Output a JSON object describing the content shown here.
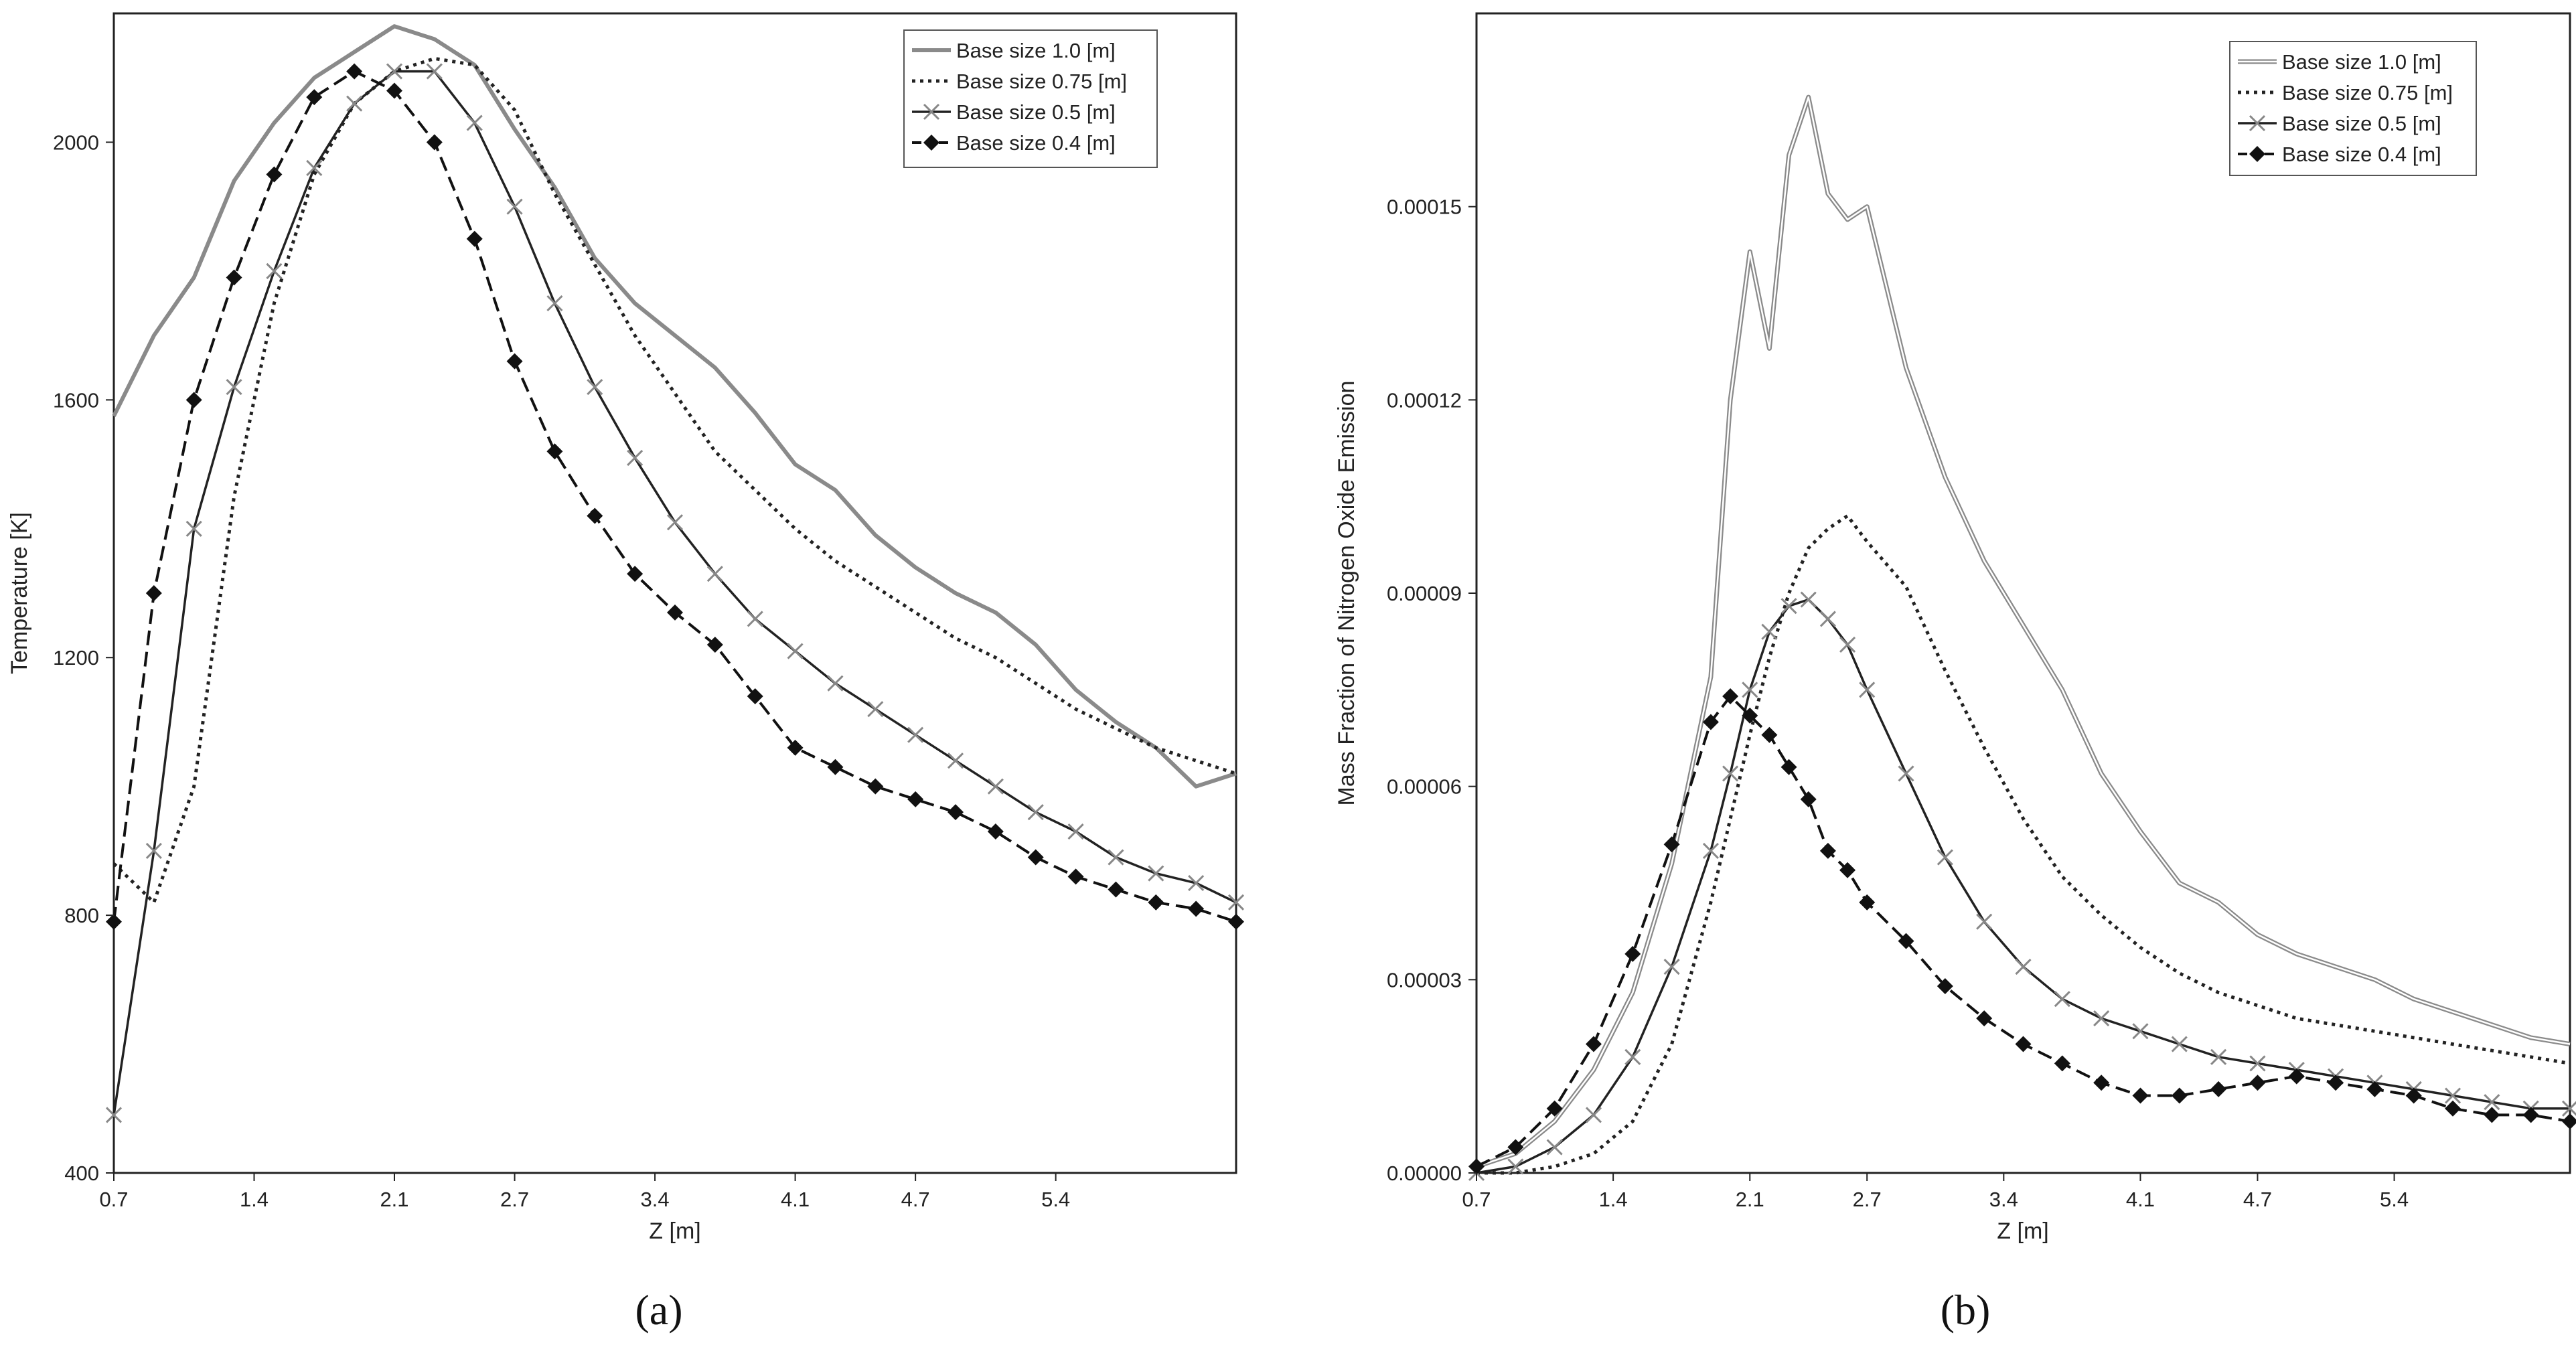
{
  "chart_data": [
    {
      "type": "line",
      "panel_label": "(a)",
      "xlabel": "Z [m]",
      "ylabel": "Temperature [K]",
      "x_ticks": [
        "0.7",
        "1.4",
        "2.1",
        "2.7",
        "3.4",
        "4.1",
        "4.7",
        "5.4"
      ],
      "y_ticks": [
        "400",
        "800",
        "1200",
        "1600",
        "2000"
      ],
      "xlim": [
        0.7,
        6.3
      ],
      "ylim": [
        400,
        2200
      ],
      "x": [
        0.7,
        0.9,
        1.1,
        1.3,
        1.5,
        1.7,
        1.9,
        2.1,
        2.3,
        2.5,
        2.7,
        2.9,
        3.1,
        3.3,
        3.5,
        3.7,
        3.9,
        4.1,
        4.3,
        4.5,
        4.7,
        4.9,
        5.1,
        5.3,
        5.5,
        5.7,
        5.9,
        6.1,
        6.3
      ],
      "series": [
        {
          "name": "Base size 1.0 [m]",
          "style": "gray-solid",
          "values": [
            1575,
            1700,
            1790,
            1940,
            2030,
            2100,
            2140,
            2180,
            2160,
            2120,
            2020,
            1930,
            1820,
            1750,
            1700,
            1650,
            1580,
            1500,
            1460,
            1390,
            1340,
            1300,
            1270,
            1220,
            1150,
            1100,
            1060,
            1000,
            1020
          ]
        },
        {
          "name": "Base size 0.75 [m]",
          "style": "dotted",
          "values": [
            880,
            820,
            1000,
            1450,
            1750,
            1950,
            2060,
            2110,
            2130,
            2120,
            2050,
            1920,
            1810,
            1700,
            1610,
            1520,
            1460,
            1400,
            1350,
            1310,
            1270,
            1230,
            1200,
            1160,
            1120,
            1090,
            1060,
            1040,
            1020
          ]
        },
        {
          "name": "Base size 0.5 [m]",
          "style": "solid-x",
          "values": [
            490,
            900,
            1400,
            1620,
            1800,
            1960,
            2060,
            2110,
            2110,
            2030,
            1900,
            1750,
            1620,
            1510,
            1410,
            1330,
            1260,
            1210,
            1160,
            1120,
            1080,
            1040,
            1000,
            960,
            930,
            890,
            865,
            850,
            820
          ]
        },
        {
          "name": "Base size 0.4 [m]",
          "style": "dash-diamond",
          "values": [
            790,
            1300,
            1600,
            1790,
            1950,
            2070,
            2110,
            2080,
            2000,
            1850,
            1660,
            1520,
            1420,
            1330,
            1270,
            1220,
            1140,
            1060,
            1030,
            1000,
            980,
            960,
            930,
            890,
            860,
            840,
            820,
            810,
            790
          ]
        }
      ]
    },
    {
      "type": "line",
      "panel_label": "(b)",
      "xlabel": "Z [m]",
      "ylabel": "Mass Fraction of Nitrogen Oxide Emission",
      "x_ticks": [
        "0.7",
        "1.4",
        "2.1",
        "2.7",
        "3.4",
        "4.1",
        "4.7",
        "5.4"
      ],
      "y_ticks": [
        "0.00000",
        "0.00003",
        "0.00006",
        "0.00009",
        "0.00012",
        "0.00015"
      ],
      "xlim": [
        0.7,
        6.3
      ],
      "ylim": [
        0,
        0.00018
      ],
      "x": [
        0.7,
        0.9,
        1.1,
        1.3,
        1.5,
        1.7,
        1.9,
        2.0,
        2.1,
        2.2,
        2.3,
        2.4,
        2.5,
        2.6,
        2.7,
        2.9,
        3.1,
        3.3,
        3.5,
        3.7,
        3.9,
        4.1,
        4.3,
        4.5,
        4.7,
        4.9,
        5.1,
        5.3,
        5.5,
        5.7,
        5.9,
        6.1,
        6.3
      ],
      "series": [
        {
          "name": "Base size 1.0 [m]",
          "style": "gray-double",
          "values": [
            1e-06,
            3e-06,
            8e-06,
            1.6e-05,
            2.8e-05,
            4.8e-05,
            7.7e-05,
            0.00012,
            0.000143,
            0.000128,
            0.000158,
            0.000167,
            0.000152,
            0.000148,
            0.00015,
            0.000125,
            0.000108,
            9.5e-05,
            8.5e-05,
            7.5e-05,
            6.2e-05,
            5.3e-05,
            4.5e-05,
            4.2e-05,
            3.7e-05,
            3.4e-05,
            3.2e-05,
            3e-05,
            2.7e-05,
            2.5e-05,
            2.3e-05,
            2.1e-05,
            2e-05
          ]
        },
        {
          "name": "Base size 0.75 [m]",
          "style": "dotted",
          "values": [
            0.0,
            0.0,
            1e-06,
            3e-06,
            8e-06,
            2e-05,
            4.2e-05,
            5.5e-05,
            6.8e-05,
            8e-05,
            9e-05,
            9.7e-05,
            0.0001,
            0.000102,
            9.8e-05,
            9.1e-05,
            7.8e-05,
            6.6e-05,
            5.5e-05,
            4.6e-05,
            4e-05,
            3.5e-05,
            3.1e-05,
            2.8e-05,
            2.6e-05,
            2.4e-05,
            2.3e-05,
            2.2e-05,
            2.1e-05,
            2e-05,
            1.9e-05,
            1.8e-05,
            1.7e-05
          ]
        },
        {
          "name": "Base size 0.5 [m]",
          "style": "solid-x",
          "values": [
            0.0,
            1e-06,
            4e-06,
            9e-06,
            1.8e-05,
            3.2e-05,
            5e-05,
            6.2e-05,
            7.5e-05,
            8.4e-05,
            8.8e-05,
            8.9e-05,
            8.6e-05,
            8.2e-05,
            7.5e-05,
            6.2e-05,
            4.9e-05,
            3.9e-05,
            3.2e-05,
            2.7e-05,
            2.4e-05,
            2.2e-05,
            2e-05,
            1.8e-05,
            1.7e-05,
            1.6e-05,
            1.5e-05,
            1.4e-05,
            1.3e-05,
            1.2e-05,
            1.1e-05,
            1e-05,
            1e-05
          ]
        },
        {
          "name": "Base size 0.4 [m]",
          "style": "dash-diamond",
          "values": [
            1e-06,
            4e-06,
            1e-05,
            2e-05,
            3.4e-05,
            5.1e-05,
            7e-05,
            7.4e-05,
            7.1e-05,
            6.8e-05,
            6.3e-05,
            5.8e-05,
            5e-05,
            4.7e-05,
            4.2e-05,
            3.6e-05,
            2.9e-05,
            2.4e-05,
            2e-05,
            1.7e-05,
            1.4e-05,
            1.2e-05,
            1.2e-05,
            1.3e-05,
            1.4e-05,
            1.5e-05,
            1.4e-05,
            1.3e-05,
            1.2e-05,
            1e-05,
            9e-06,
            9e-06,
            8e-06
          ]
        }
      ]
    }
  ]
}
